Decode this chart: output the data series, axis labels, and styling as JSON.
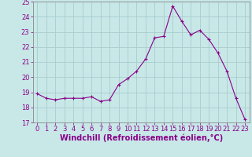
{
  "x": [
    0,
    1,
    2,
    3,
    4,
    5,
    6,
    7,
    8,
    9,
    10,
    11,
    12,
    13,
    14,
    15,
    16,
    17,
    18,
    19,
    20,
    21,
    22,
    23
  ],
  "y": [
    18.9,
    18.6,
    18.5,
    18.6,
    18.6,
    18.6,
    18.7,
    18.4,
    18.5,
    19.5,
    19.9,
    20.4,
    21.2,
    22.6,
    22.7,
    24.7,
    23.7,
    22.8,
    23.1,
    22.5,
    21.6,
    20.4,
    18.6,
    17.2
  ],
  "line_color": "#880088",
  "marker": "+",
  "bg_color": "#c8e8e8",
  "grid_color": "#aacccc",
  "xlabel": "Windchill (Refroidissement éolien,°C)",
  "xlabel_color": "#880088",
  "ylim": [
    17,
    25
  ],
  "xlim_min": -0.5,
  "xlim_max": 23.5,
  "yticks": [
    17,
    18,
    19,
    20,
    21,
    22,
    23,
    24,
    25
  ],
  "xticks": [
    0,
    1,
    2,
    3,
    4,
    5,
    6,
    7,
    8,
    9,
    10,
    11,
    12,
    13,
    14,
    15,
    16,
    17,
    18,
    19,
    20,
    21,
    22,
    23
  ],
  "tick_color": "#880088",
  "tick_fontsize": 6,
  "xlabel_fontsize": 7,
  "spine_color": "#888888",
  "linewidth": 0.8,
  "markersize": 3.5,
  "markeredgewidth": 0.8
}
